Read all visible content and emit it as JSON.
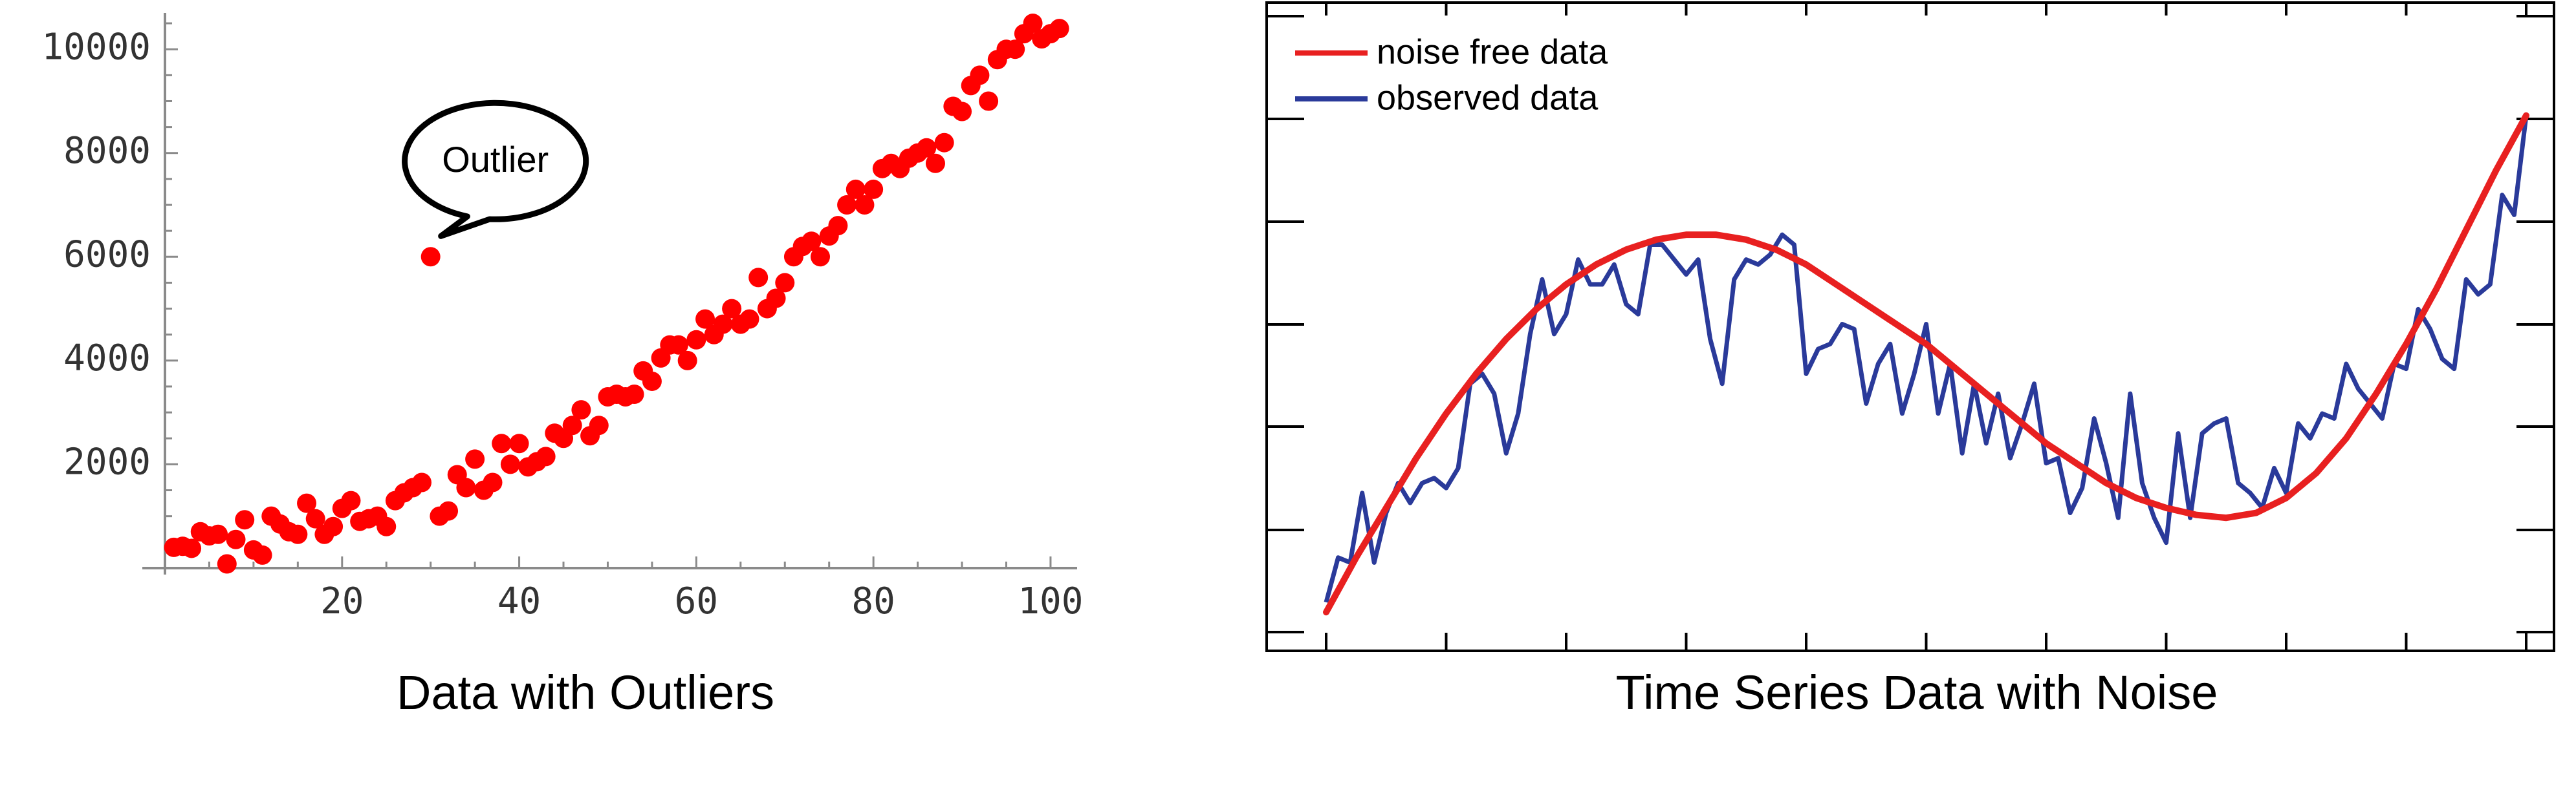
{
  "chart_data": [
    {
      "type": "scatter",
      "title": "",
      "caption": "Data with Outliers",
      "xlabel": "",
      "ylabel": "",
      "xlim": [
        0,
        103
      ],
      "ylim": [
        -200,
        10700
      ],
      "grid": false,
      "legend": "none",
      "marker_color": "#ff0000",
      "xticks": [
        20,
        40,
        60,
        80,
        100
      ],
      "xtick_labels": [
        "20",
        "40",
        "60",
        "80",
        "100"
      ],
      "yticks": [
        2000,
        4000,
        6000,
        8000,
        10000
      ],
      "ytick_labels": [
        "2000",
        "4000",
        "6000",
        "8000",
        "10000"
      ],
      "annotation": {
        "text": "Outlier",
        "x": 30,
        "y": 6000
      },
      "x": [
        1,
        2,
        3,
        4,
        5,
        6,
        7,
        8,
        9,
        10,
        11,
        12,
        13,
        14,
        15,
        16,
        17,
        18,
        19,
        20,
        21,
        22,
        23,
        24,
        25,
        26,
        27,
        28,
        29,
        30,
        31,
        32,
        33,
        34,
        35,
        36,
        37,
        38,
        39,
        40,
        41,
        42,
        43,
        44,
        45,
        46,
        47,
        48,
        49,
        50,
        51,
        52,
        53,
        54,
        55,
        56,
        57,
        58,
        59,
        60,
        61,
        62,
        63,
        64,
        65,
        66,
        67,
        68,
        69,
        70,
        71,
        72,
        73,
        74,
        75,
        76,
        77,
        78,
        79,
        80,
        81,
        82,
        83,
        84,
        85,
        86,
        87,
        88,
        89,
        90,
        91,
        92,
        93,
        94,
        95,
        96,
        97,
        98,
        99,
        100,
        101
      ],
      "y": [
        400,
        420,
        380,
        700,
        620,
        650,
        80,
        550,
        930,
        350,
        250,
        1000,
        850,
        700,
        650,
        1250,
        950,
        650,
        800,
        1150,
        1300,
        900,
        950,
        1000,
        800,
        1300,
        1450,
        1550,
        1650,
        6000,
        1000,
        1100,
        1800,
        1550,
        2100,
        1500,
        1650,
        2400,
        2000,
        2400,
        1950,
        2050,
        2150,
        2600,
        2500,
        2750,
        3050,
        2550,
        2750,
        3300,
        3350,
        3300,
        3350,
        3800,
        3600,
        4050,
        4300,
        4300,
        4000,
        4400,
        4800,
        4500,
        4700,
        5000,
        4700,
        4800,
        5600,
        5000,
        5200,
        5500,
        6000,
        6200,
        6300,
        6000,
        6400,
        6600,
        7000,
        7300,
        7000,
        7300,
        7700,
        7800,
        7700,
        7900,
        8000,
        8100,
        7800,
        8200,
        8900,
        8800,
        9300,
        9500,
        9000,
        9800,
        10000,
        10000,
        10300,
        10500,
        10200,
        10300,
        10400
      ]
    },
    {
      "type": "line",
      "title": "",
      "caption": "Time Series Data with Noise",
      "xlabel": "",
      "ylabel": "",
      "xlim": [
        -0.5,
        10.5
      ],
      "ylim": [
        -0.2,
        6.0
      ],
      "tick_labels_shown": false,
      "grid": false,
      "legend": "top-left",
      "series": [
        {
          "name": "noise free data",
          "color": "#e82020",
          "x": [
            0,
            0.25,
            0.5,
            0.75,
            1,
            1.25,
            1.5,
            1.75,
            2,
            2.25,
            2.5,
            2.75,
            3,
            3.25,
            3.5,
            3.75,
            4,
            4.25,
            4.5,
            4.75,
            5,
            5.25,
            5.5,
            5.75,
            6,
            6.25,
            6.5,
            6.75,
            7,
            7.25,
            7.5,
            7.75,
            8,
            8.25,
            8.5,
            8.75,
            9,
            9.25,
            9.5,
            9.75,
            10
          ],
          "y": [
            0.0,
            0.55,
            1.05,
            1.55,
            2.0,
            2.4,
            2.75,
            3.05,
            3.3,
            3.5,
            3.65,
            3.75,
            3.8,
            3.8,
            3.75,
            3.65,
            3.5,
            3.3,
            3.1,
            2.9,
            2.7,
            2.45,
            2.2,
            1.95,
            1.7,
            1.5,
            1.3,
            1.15,
            1.05,
            0.98,
            0.95,
            1.0,
            1.15,
            1.4,
            1.75,
            2.2,
            2.7,
            3.25,
            3.85,
            4.45,
            5.0
          ]
        },
        {
          "name": "observed data",
          "color": "#2a3a9a",
          "x": [
            0,
            0.1,
            0.2,
            0.3,
            0.4,
            0.5,
            0.6,
            0.7,
            0.8,
            0.9,
            1.0,
            1.1,
            1.2,
            1.3,
            1.4,
            1.5,
            1.6,
            1.7,
            1.8,
            1.9,
            2.0,
            2.1,
            2.2,
            2.3,
            2.4,
            2.5,
            2.6,
            2.7,
            2.8,
            2.9,
            3.0,
            3.1,
            3.2,
            3.3,
            3.4,
            3.5,
            3.6,
            3.7,
            3.8,
            3.9,
            4.0,
            4.1,
            4.2,
            4.3,
            4.4,
            4.5,
            4.6,
            4.7,
            4.8,
            4.9,
            5.0,
            5.1,
            5.2,
            5.3,
            5.4,
            5.5,
            5.6,
            5.7,
            5.8,
            5.9,
            6.0,
            6.1,
            6.2,
            6.3,
            6.4,
            6.5,
            6.6,
            6.7,
            6.8,
            6.9,
            7.0,
            7.1,
            7.2,
            7.3,
            7.4,
            7.5,
            7.6,
            7.7,
            7.8,
            7.9,
            8.0,
            8.1,
            8.2,
            8.3,
            8.4,
            8.5,
            8.6,
            8.7,
            8.8,
            8.9,
            9.0,
            9.1,
            9.2,
            9.3,
            9.4,
            9.5,
            9.6,
            9.7,
            9.8,
            9.9,
            10.0
          ],
          "y": [
            0.1,
            0.55,
            0.5,
            1.2,
            0.5,
            1.0,
            1.3,
            1.1,
            1.3,
            1.35,
            1.25,
            1.45,
            2.3,
            2.4,
            2.2,
            1.6,
            2.0,
            2.8,
            3.35,
            2.8,
            3.0,
            3.55,
            3.3,
            3.3,
            3.5,
            3.1,
            3.0,
            3.7,
            3.7,
            3.55,
            3.4,
            3.55,
            2.75,
            2.3,
            3.35,
            3.55,
            3.5,
            3.6,
            3.8,
            3.7,
            2.4,
            2.65,
            2.7,
            2.9,
            2.85,
            2.1,
            2.5,
            2.7,
            2.0,
            2.4,
            2.9,
            2.0,
            2.5,
            1.6,
            2.3,
            1.7,
            2.2,
            1.55,
            1.9,
            2.3,
            1.5,
            1.55,
            1.0,
            1.25,
            1.95,
            1.5,
            0.95,
            2.2,
            1.3,
            0.95,
            0.7,
            1.8,
            0.95,
            1.8,
            1.9,
            1.95,
            1.3,
            1.2,
            1.05,
            1.45,
            1.2,
            1.9,
            1.75,
            2.0,
            1.95,
            2.5,
            2.25,
            2.1,
            1.95,
            2.5,
            2.45,
            3.05,
            2.85,
            2.55,
            2.45,
            3.35,
            3.2,
            3.3,
            4.2,
            4.0,
            5.0
          ]
        }
      ]
    }
  ]
}
